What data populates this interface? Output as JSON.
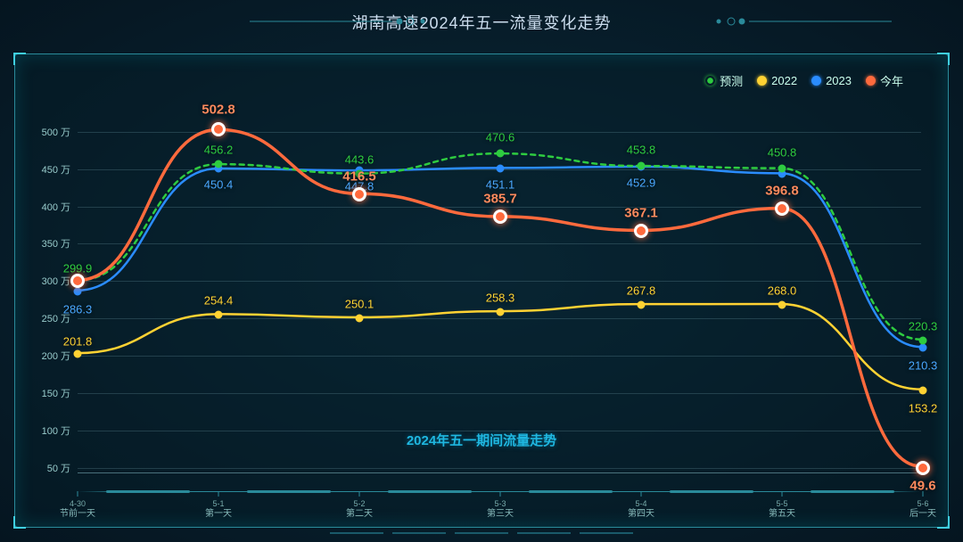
{
  "title": "湖南高速2024年五一流量变化走势",
  "subtitle": "2024年五一期间流量走势",
  "chart": {
    "type": "line",
    "background": "#07202c",
    "grid_color": "rgba(90,130,140,0.35)",
    "y": {
      "min": 40,
      "max": 520,
      "ticks": [
        50,
        100,
        150,
        200,
        250,
        300,
        350,
        400,
        450,
        500
      ],
      "unit": "万",
      "label_fontsize": 11,
      "label_color": "#99cccc"
    },
    "x": {
      "categories": [
        {
          "date": "4-30",
          "name": "节前一天"
        },
        {
          "date": "5-1",
          "name": "第一天"
        },
        {
          "date": "5-2",
          "name": "第二天"
        },
        {
          "date": "5-3",
          "name": "第三天"
        },
        {
          "date": "5-4",
          "name": "第四天"
        },
        {
          "date": "5-5",
          "name": "第五天"
        },
        {
          "date": "5-6",
          "name": "后一天"
        }
      ],
      "label_fontsize": 10,
      "label_color": "#88bbbb"
    },
    "legend": {
      "position": "top-right",
      "fontsize": 13,
      "items": [
        {
          "key": "forecast",
          "label": "预测",
          "color": "#2ecc40",
          "dash": true
        },
        {
          "key": "y2022",
          "label": "2022",
          "color": "#ffd233",
          "dash": false
        },
        {
          "key": "y2023",
          "label": "2023",
          "color": "#2a8cff",
          "dash": false
        },
        {
          "key": "thisyear",
          "label": "今年",
          "color": "#ff6a3d",
          "dash": false
        }
      ]
    },
    "series": {
      "forecast": {
        "color": "#2ecc40",
        "dash": "5,5",
        "width": 2.5,
        "marker": "circle",
        "markersize": 9,
        "values": [
          299.9,
          456.2,
          443.6,
          470.6,
          453.8,
          450.8,
          220.3
        ],
        "labels_color": "#2ecc40"
      },
      "y2022": {
        "color": "#ffd233",
        "dash": null,
        "width": 2.5,
        "marker": "circle",
        "markersize": 9,
        "values": [
          201.8,
          254.4,
          250.1,
          258.3,
          267.8,
          268.0,
          153.2
        ],
        "labels_color": "#ffd233"
      },
      "y2023": {
        "color": "#2a8cff",
        "dash": null,
        "width": 2.5,
        "marker": "circle",
        "markersize": 9,
        "values": [
          286.3,
          450.4,
          447.8,
          451.1,
          452.9,
          444.0,
          210.3
        ],
        "labels": [
          286.3,
          450.4,
          447.8,
          451.1,
          452.9,
          null,
          210.3
        ],
        "labels_color": "#4aa8ff"
      },
      "thisyear": {
        "color": "#ff6a3d",
        "dash": null,
        "width": 3.5,
        "marker": "circle",
        "markersize": 16,
        "emphasize": true,
        "values": [
          300.0,
          502.8,
          416.5,
          385.7,
          367.1,
          396.8,
          49.6
        ],
        "labels": [
          null,
          502.8,
          416.5,
          385.7,
          367.1,
          396.8,
          49.6
        ],
        "labels_color": "#ff8a5d"
      }
    },
    "series_order": [
      "y2022",
      "y2023",
      "forecast",
      "thisyear"
    ],
    "label_fontsize": 13
  }
}
